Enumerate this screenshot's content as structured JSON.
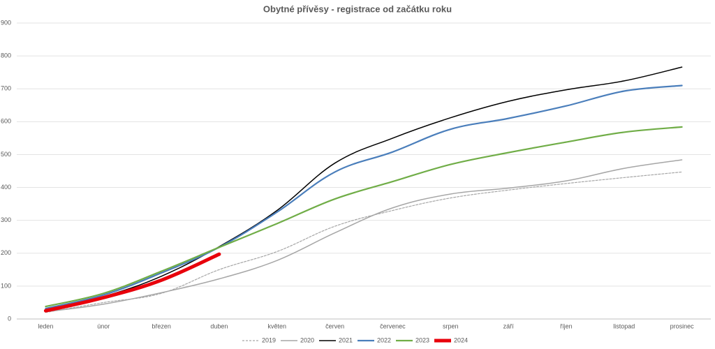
{
  "chart_data": {
    "type": "line",
    "title": "Obytné přívěsy - registrace od začátku roku",
    "categories": [
      "leden",
      "únor",
      "březen",
      "duben",
      "květen",
      "červen",
      "červenec",
      "srpen",
      "září",
      "říjen",
      "listopad",
      "prosinec"
    ],
    "series": [
      {
        "name": "2019",
        "color": "#a6a6a6",
        "dash": true,
        "width": 1.2,
        "values": [
          20,
          50,
          78,
          150,
          205,
          282,
          330,
          368,
          392,
          412,
          430,
          447
        ]
      },
      {
        "name": "2020",
        "color": "#a6a6a6",
        "dash": false,
        "width": 1.5,
        "values": [
          22,
          45,
          80,
          122,
          178,
          262,
          338,
          380,
          398,
          420,
          458,
          484
        ]
      },
      {
        "name": "2021",
        "color": "#000000",
        "dash": false,
        "width": 1.5,
        "values": [
          30,
          68,
          130,
          220,
          330,
          474,
          550,
          612,
          662,
          697,
          724,
          766
        ]
      },
      {
        "name": "2022",
        "color": "#4a7ebb",
        "dash": false,
        "width": 2.2,
        "values": [
          32,
          73,
          140,
          218,
          325,
          447,
          508,
          577,
          610,
          648,
          693,
          710
        ]
      },
      {
        "name": "2023",
        "color": "#70ad47",
        "dash": false,
        "width": 2.2,
        "values": [
          38,
          78,
          145,
          218,
          290,
          365,
          418,
          470,
          506,
          538,
          568,
          584
        ]
      },
      {
        "name": "2024",
        "color": "#e8000b",
        "dash": false,
        "width": 5,
        "values": [
          25,
          65,
          118,
          197,
          null,
          null,
          null,
          null,
          null,
          null,
          null,
          null
        ]
      }
    ],
    "ylim": [
      0,
      900
    ],
    "yticks": [
      0,
      100,
      200,
      300,
      400,
      500,
      600,
      700,
      800,
      900
    ],
    "grid": true,
    "legend": "bottom"
  }
}
